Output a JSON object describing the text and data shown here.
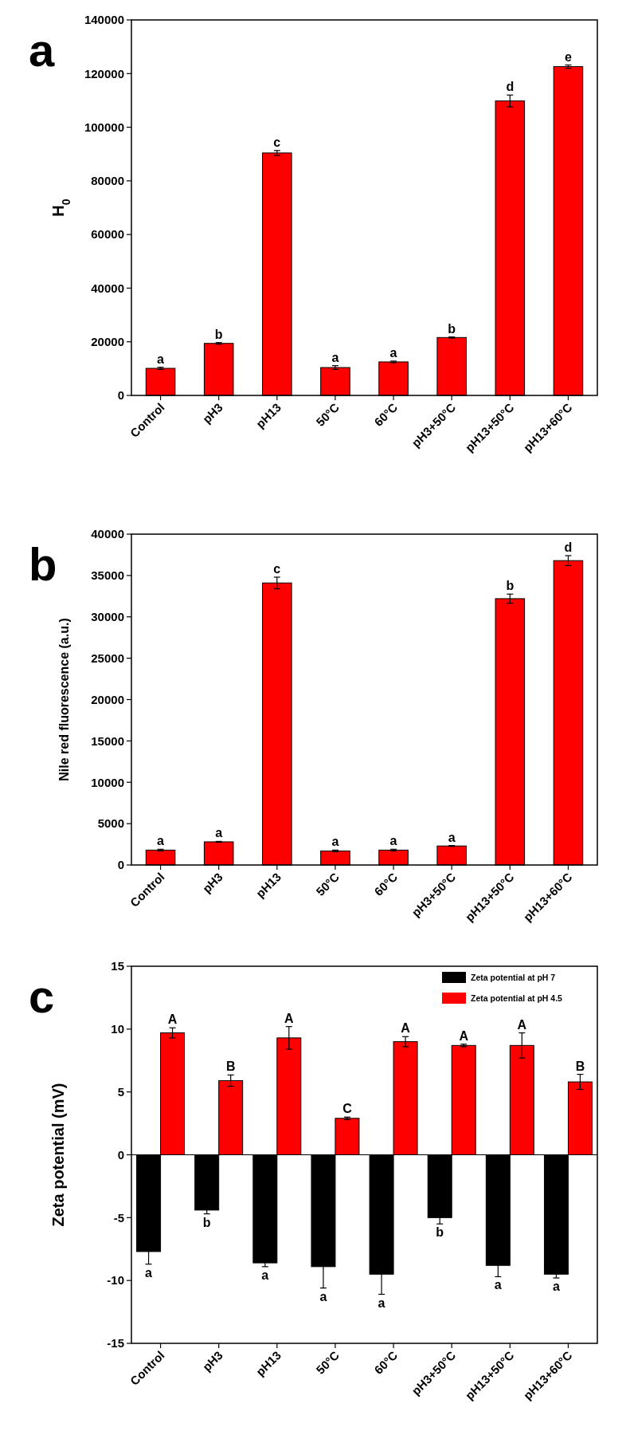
{
  "chart_data": [
    {
      "type": "bar",
      "title": "a",
      "ylabel": "H$_{0}$",
      "categories": [
        "Control",
        "pH3",
        "pH13",
        "50°C",
        "60°C",
        "pH3+50°C",
        "pH13+50°C",
        "pH13+60°C"
      ],
      "values": [
        10100,
        19400,
        90400,
        10400,
        12500,
        21600,
        109800,
        122600
      ],
      "errors": [
        400,
        300,
        900,
        700,
        300,
        200,
        2200,
        600
      ],
      "color": "#ff0000",
      "ylim": [
        0,
        140000
      ],
      "yticks": [
        0,
        20000,
        40000,
        60000,
        80000,
        100000,
        120000,
        140000
      ],
      "annotations": [
        {
          "text": "a",
          "x": "Control",
          "y": 10500
        },
        {
          "text": "b",
          "x": "pH3",
          "y": 19700
        },
        {
          "text": "c",
          "x": "pH13",
          "y": 91300
        },
        {
          "text": "a",
          "x": "50°C",
          "y": 11100
        },
        {
          "text": "a",
          "x": "60°C",
          "y": 12800
        },
        {
          "text": "b",
          "x": "pH3+50°C",
          "y": 21800
        },
        {
          "text": "d",
          "x": "pH13+50°C",
          "y": 112000
        },
        {
          "text": "e",
          "x": "pH13+60°C",
          "y": 123200
        }
      ]
    },
    {
      "type": "bar",
      "title": "b",
      "ylabel": "Nile red fluorescence (a.u.)",
      "categories": [
        "Control",
        "pH3",
        "pH13",
        "50°C",
        "60°C",
        "pH3+50°C",
        "pH13+50°C",
        "pH13+60°C"
      ],
      "values": [
        1800,
        2800,
        34100,
        1700,
        1800,
        2300,
        32200,
        36800
      ],
      "errors": [
        100,
        50,
        700,
        100,
        100,
        50,
        550,
        600
      ],
      "color": "#ff0000",
      "ylim": [
        0,
        40000
      ],
      "yticks": [
        0,
        5000,
        10000,
        15000,
        20000,
        25000,
        30000,
        35000,
        40000
      ],
      "annotations": [
        {
          "text": "a",
          "x": "Control",
          "y": 1900
        },
        {
          "text": "a",
          "x": "pH3",
          "y": 2850
        },
        {
          "text": "c",
          "x": "pH13",
          "y": 34800
        },
        {
          "text": "a",
          "x": "50°C",
          "y": 1800
        },
        {
          "text": "a",
          "x": "60°C",
          "y": 1900
        },
        {
          "text": "a",
          "x": "pH3+50°C",
          "y": 2350
        },
        {
          "text": "b",
          "x": "pH13+50°C",
          "y": 32750
        },
        {
          "text": "d",
          "x": "pH13+60°C",
          "y": 37400
        }
      ]
    },
    {
      "type": "bar",
      "title": "c",
      "ylabel": "Zeta potential (mV)",
      "categories": [
        "Control",
        "pH3",
        "pH13",
        "50°C",
        "60°C",
        "pH3+50°C",
        "pH13+50°C",
        "pH13+60°C"
      ],
      "legend": "top right",
      "ylim": [
        -15,
        15
      ],
      "yticks": [
        -15,
        -10,
        -5,
        0,
        5,
        10,
        15
      ],
      "series": [
        {
          "name": "Zeta potential at pH 7",
          "color": "#000000",
          "values": [
            -7.7,
            -4.4,
            -8.6,
            -8.9,
            -9.5,
            -5.0,
            -8.8,
            -9.5
          ],
          "errors": [
            1.0,
            0.3,
            0.3,
            1.7,
            1.6,
            0.5,
            0.9,
            0.3
          ]
        },
        {
          "name": "Zeta potential at pH 4.5",
          "color": "#ff0000",
          "values": [
            9.7,
            5.9,
            9.3,
            2.9,
            9.0,
            8.7,
            8.7,
            5.8
          ],
          "errors": [
            0.4,
            0.45,
            0.9,
            0.1,
            0.4,
            0.1,
            1.0,
            0.6
          ]
        }
      ],
      "annotations": [
        {
          "text": "a",
          "x": "Control",
          "y": -7.7
        },
        {
          "text": "b",
          "x": "pH3",
          "y": -4.4
        },
        {
          "text": "a",
          "x": "pH13",
          "y": -8.6
        },
        {
          "text": "a",
          "x": "50°C",
          "y": -8.9
        },
        {
          "text": "a",
          "x": "60°C",
          "y": -9.5
        },
        {
          "text": "b",
          "x": "pH3+50°C",
          "y": -5.0
        },
        {
          "text": "a",
          "x": "pH13+50°C",
          "y": -8.8
        },
        {
          "text": "a",
          "x": "pH13+60°C",
          "y": -9.5
        },
        {
          "text": "A",
          "x": "Control",
          "y": 9.7
        },
        {
          "text": "B",
          "x": "pH3",
          "y": 5.9
        },
        {
          "text": "A",
          "x": "pH13",
          "y": 9.3
        },
        {
          "text": "C",
          "x": "50°C",
          "y": 2.9
        },
        {
          "text": "A",
          "x": "60°C",
          "y": 9.0
        },
        {
          "text": "A",
          "x": "pH3+50°C",
          "y": 8.7
        },
        {
          "text": "A",
          "x": "pH13+50°C",
          "y": 8.7
        },
        {
          "text": "B",
          "x": "pH13+60°C",
          "y": 5.8
        }
      ]
    }
  ]
}
